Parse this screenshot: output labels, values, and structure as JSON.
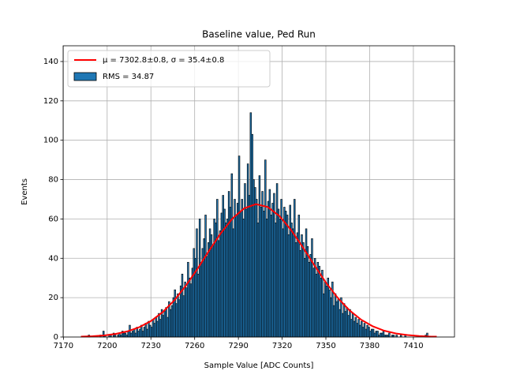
{
  "chart_data": {
    "type": "histogram",
    "title": "Baseline value, Ped Run",
    "xlabel": "Sample Value [ADC Counts]",
    "ylabel": "Events",
    "name": "RMS = 34.87",
    "color": "#1f77b4",
    "edgecolor": "#000000",
    "bins": [
      7182,
      7183,
      7184,
      7185,
      7186,
      7187,
      7188,
      7189,
      7190,
      7191,
      7192,
      7193,
      7194,
      7195,
      7196,
      7197,
      7198,
      7199,
      7200,
      7201,
      7202,
      7203,
      7204,
      7205,
      7206,
      7207,
      7208,
      7209,
      7210,
      7211,
      7212,
      7213,
      7214,
      7215,
      7216,
      7217,
      7218,
      7219,
      7220,
      7221,
      7222,
      7223,
      7224,
      7225,
      7226,
      7227,
      7228,
      7229,
      7230,
      7231,
      7232,
      7233,
      7234,
      7235,
      7236,
      7237,
      7238,
      7239,
      7240,
      7241,
      7242,
      7243,
      7244,
      7245,
      7246,
      7247,
      7248,
      7249,
      7250,
      7251,
      7252,
      7253,
      7254,
      7255,
      7256,
      7257,
      7258,
      7259,
      7260,
      7261,
      7262,
      7263,
      7264,
      7265,
      7266,
      7267,
      7268,
      7269,
      7270,
      7271,
      7272,
      7273,
      7274,
      7275,
      7276,
      7277,
      7278,
      7279,
      7280,
      7281,
      7282,
      7283,
      7284,
      7285,
      7286,
      7287,
      7288,
      7289,
      7290,
      7291,
      7292,
      7293,
      7294,
      7295,
      7296,
      7297,
      7298,
      7299,
      7300,
      7301,
      7302,
      7303,
      7304,
      7305,
      7306,
      7307,
      7308,
      7309,
      7310,
      7311,
      7312,
      7313,
      7314,
      7315,
      7316,
      7317,
      7318,
      7319,
      7320,
      7321,
      7322,
      7323,
      7324,
      7325,
      7326,
      7327,
      7328,
      7329,
      7330,
      7331,
      7332,
      7333,
      7334,
      7335,
      7336,
      7337,
      7338,
      7339,
      7340,
      7341,
      7342,
      7343,
      7344,
      7345,
      7346,
      7347,
      7348,
      7349,
      7350,
      7351,
      7352,
      7353,
      7354,
      7355,
      7356,
      7357,
      7358,
      7359,
      7360,
      7361,
      7362,
      7363,
      7364,
      7365,
      7366,
      7367,
      7368,
      7369,
      7370,
      7371,
      7372,
      7373,
      7374,
      7375,
      7376,
      7377,
      7378,
      7379,
      7380,
      7381,
      7382,
      7383,
      7384,
      7385,
      7386,
      7387,
      7388,
      7389,
      7390,
      7391,
      7392,
      7393,
      7394,
      7395,
      7396,
      7397,
      7398,
      7399,
      7400,
      7401,
      7402,
      7403,
      7404,
      7405,
      7406,
      7407,
      7408,
      7409,
      7410,
      7411,
      7412,
      7413,
      7414,
      7415,
      7416,
      7417,
      7418,
      7419,
      7420,
      7421,
      7422,
      7423,
      7424,
      7425,
      7426
    ],
    "counts": [
      0,
      0,
      0,
      0,
      0,
      1,
      0,
      0,
      0,
      0,
      0,
      0,
      0,
      1,
      0,
      3,
      1,
      0,
      0,
      1,
      1,
      0,
      2,
      1,
      0,
      1,
      2,
      1,
      3,
      2,
      2,
      1,
      3,
      6,
      2,
      3,
      4,
      2,
      5,
      3,
      4,
      6,
      3,
      5,
      7,
      4,
      8,
      6,
      5,
      9,
      7,
      10,
      8,
      12,
      9,
      14,
      11,
      13,
      15,
      10,
      18,
      14,
      16,
      20,
      24,
      17,
      22,
      19,
      26,
      32,
      21,
      28,
      25,
      38,
      30,
      27,
      35,
      45,
      40,
      55,
      32,
      60,
      38,
      45,
      50,
      62,
      41,
      48,
      55,
      52,
      47,
      60,
      58,
      70,
      49,
      54,
      63,
      72,
      65,
      58,
      60,
      74,
      66,
      83,
      55,
      70,
      62,
      68,
      92,
      64,
      70,
      60,
      78,
      65,
      88,
      72,
      114,
      103,
      80,
      76,
      70,
      58,
      82,
      66,
      74,
      64,
      90,
      60,
      69,
      75,
      62,
      68,
      73,
      58,
      78,
      65,
      60,
      70,
      55,
      66,
      64,
      62,
      52,
      67,
      58,
      55,
      70,
      48,
      53,
      62,
      44,
      52,
      48,
      40,
      55,
      46,
      38,
      42,
      50,
      35,
      40,
      32,
      38,
      36,
      30,
      34,
      22,
      28,
      26,
      30,
      24,
      20,
      28,
      16,
      22,
      18,
      19,
      14,
      20,
      12,
      17,
      13,
      15,
      11,
      14,
      9,
      12,
      8,
      10,
      7,
      9,
      6,
      8,
      5,
      7,
      4,
      6,
      5,
      3,
      4,
      4,
      2,
      3,
      3,
      1,
      2,
      2,
      3,
      1,
      1,
      1,
      2,
      0,
      1,
      1,
      0,
      1,
      0,
      0,
      1,
      0,
      0,
      1,
      0,
      0,
      0,
      0,
      0,
      0,
      0,
      0,
      0,
      0,
      0,
      0,
      0,
      1,
      2,
      0,
      0,
      0,
      0,
      0,
      0
    ],
    "fit": {
      "name": "μ = 7302.8±0.8, σ = 35.4±0.8",
      "color": "#ff0000",
      "x": [
        7182,
        7190,
        7198,
        7206,
        7214,
        7222,
        7230,
        7238,
        7246,
        7254,
        7262,
        7270,
        7278,
        7286,
        7294,
        7302,
        7310,
        7318,
        7326,
        7334,
        7342,
        7350,
        7358,
        7366,
        7374,
        7382,
        7390,
        7398,
        7406,
        7414,
        7422,
        7426
      ],
      "values": [
        0.2,
        0.4,
        0.8,
        1.6,
        2.9,
        5.0,
        8.1,
        12.6,
        18.6,
        26.1,
        34.7,
        44.0,
        52.8,
        60.3,
        65.4,
        67.5,
        66.1,
        61.6,
        54.5,
        45.8,
        36.6,
        27.7,
        20.0,
        13.7,
        8.9,
        5.5,
        3.2,
        1.8,
        1.0,
        0.5,
        0.2,
        0.2
      ]
    },
    "xlim": [
      7169.8,
      7438.2
    ],
    "ylim": [
      0,
      148
    ],
    "xticks": [
      7170,
      7200,
      7230,
      7260,
      7290,
      7320,
      7350,
      7380,
      7410
    ],
    "yticks": [
      0,
      20,
      40,
      60,
      80,
      100,
      120,
      140
    ],
    "grid": true,
    "legend": "upper left"
  }
}
